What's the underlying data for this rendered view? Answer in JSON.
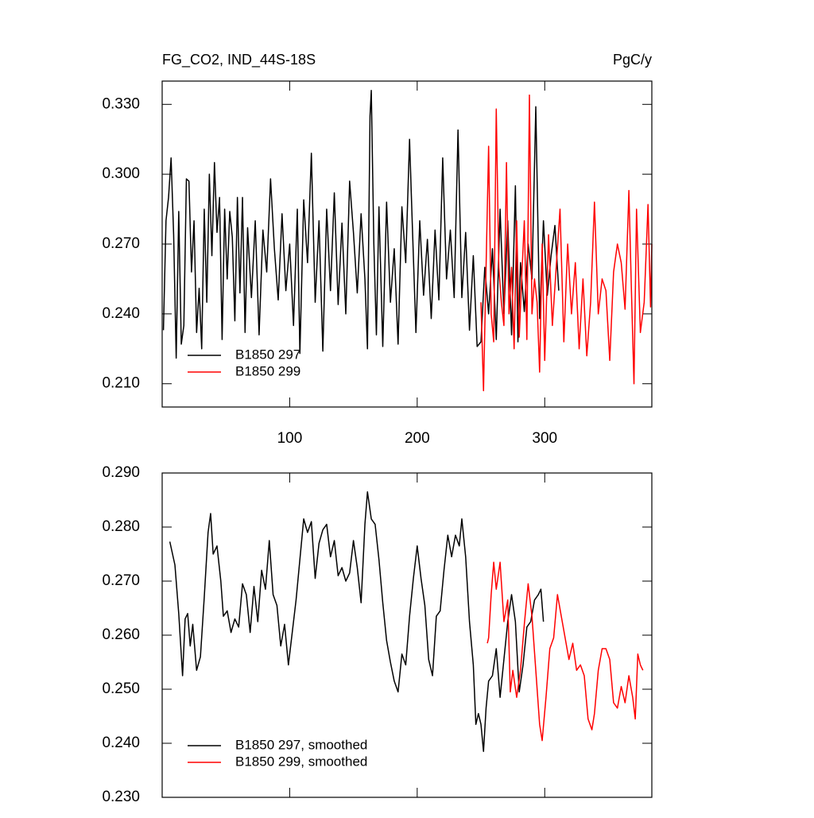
{
  "chart_data": [
    {
      "type": "line",
      "title": "FG_CO2, IND_44S-18S",
      "right_title": "PgC/y",
      "xlim": [
        0,
        384
      ],
      "xticks": [
        100,
        200,
        300
      ],
      "ylim": [
        0.2,
        0.34
      ],
      "yticks": [
        {
          "value": 0.21,
          "label": "0.210"
        },
        {
          "value": 0.24,
          "label": "0.240"
        },
        {
          "value": 0.27,
          "label": "0.270"
        },
        {
          "value": 0.3,
          "label": "0.300"
        },
        {
          "value": 0.33,
          "label": "0.330"
        }
      ],
      "legend": "lower left",
      "series": [
        {
          "name": "B1850 297",
          "color": "#000000",
          "x": [
            1,
            3,
            5,
            7,
            9,
            11,
            13,
            15,
            17,
            19,
            21,
            23,
            25,
            27,
            29,
            31,
            33,
            35,
            37,
            39,
            41,
            43,
            45,
            47,
            49,
            51,
            53,
            55,
            57,
            59,
            61,
            63,
            65,
            67,
            70,
            73,
            76,
            79,
            82,
            85,
            88,
            91,
            94,
            97,
            100,
            103,
            106,
            108,
            111,
            114,
            117,
            120,
            123,
            126,
            129,
            132,
            135,
            138,
            141,
            144,
            147,
            150,
            153,
            156,
            159,
            161,
            163,
            164,
            166,
            168,
            170,
            173,
            176,
            179,
            182,
            185,
            188,
            191,
            194,
            196,
            199,
            202,
            205,
            208,
            211,
            214,
            217,
            220,
            223,
            226,
            229,
            232,
            235,
            238,
            241,
            244,
            247,
            250,
            253,
            256,
            259,
            262,
            265,
            268,
            271,
            274,
            277,
            279,
            281,
            284,
            287,
            290,
            293,
            296,
            299,
            302,
            305,
            308,
            311
          ],
          "values": [
            0.233,
            0.28,
            0.29,
            0.307,
            0.274,
            0.221,
            0.284,
            0.227,
            0.235,
            0.298,
            0.297,
            0.258,
            0.28,
            0.232,
            0.251,
            0.225,
            0.285,
            0.245,
            0.3,
            0.265,
            0.305,
            0.275,
            0.29,
            0.229,
            0.285,
            0.255,
            0.284,
            0.273,
            0.237,
            0.29,
            0.249,
            0.29,
            0.232,
            0.277,
            0.247,
            0.28,
            0.231,
            0.276,
            0.258,
            0.298,
            0.268,
            0.246,
            0.283,
            0.25,
            0.27,
            0.235,
            0.285,
            0.223,
            0.289,
            0.262,
            0.309,
            0.245,
            0.28,
            0.224,
            0.285,
            0.25,
            0.292,
            0.244,
            0.279,
            0.24,
            0.297,
            0.275,
            0.249,
            0.283,
            0.255,
            0.225,
            0.325,
            0.336,
            0.27,
            0.231,
            0.286,
            0.226,
            0.288,
            0.245,
            0.268,
            0.227,
            0.286,
            0.262,
            0.315,
            0.281,
            0.232,
            0.28,
            0.248,
            0.272,
            0.238,
            0.276,
            0.246,
            0.307,
            0.255,
            0.276,
            0.247,
            0.319,
            0.247,
            0.275,
            0.233,
            0.265,
            0.226,
            0.228,
            0.26,
            0.24,
            0.268,
            0.229,
            0.285,
            0.24,
            0.28,
            0.231,
            0.295,
            0.228,
            0.262,
            0.241,
            0.27,
            0.255,
            0.329,
            0.238,
            0.28,
            0.248,
            0.265,
            0.278,
            0.25
          ]
        },
        {
          "name": "B1850 299",
          "color": "#ff0000",
          "x": [
            250,
            252,
            254,
            256,
            258,
            260,
            262,
            264,
            266,
            268,
            270,
            272,
            274,
            276,
            278,
            280,
            282,
            284,
            286,
            288,
            290,
            292,
            294,
            296,
            298,
            300,
            303,
            306,
            309,
            312,
            315,
            318,
            321,
            324,
            327,
            330,
            333,
            336,
            339,
            342,
            345,
            348,
            351,
            354,
            357,
            360,
            363,
            366,
            368,
            370,
            372,
            375,
            378,
            381,
            383,
            384
          ],
          "values": [
            0.245,
            0.207,
            0.26,
            0.312,
            0.24,
            0.228,
            0.328,
            0.26,
            0.245,
            0.235,
            0.305,
            0.24,
            0.26,
            0.225,
            0.28,
            0.23,
            0.256,
            0.28,
            0.229,
            0.334,
            0.24,
            0.255,
            0.245,
            0.215,
            0.27,
            0.22,
            0.274,
            0.235,
            0.26,
            0.285,
            0.228,
            0.27,
            0.24,
            0.262,
            0.225,
            0.255,
            0.222,
            0.245,
            0.288,
            0.24,
            0.255,
            0.25,
            0.22,
            0.258,
            0.27,
            0.262,
            0.242,
            0.293,
            0.25,
            0.21,
            0.285,
            0.232,
            0.245,
            0.287,
            0.243,
            0.27
          ]
        }
      ]
    },
    {
      "type": "line",
      "xlim": [
        0,
        384
      ],
      "xticks": [
        100,
        200,
        300
      ],
      "ylim": [
        0.23,
        0.29
      ],
      "yticks": [
        {
          "value": 0.23,
          "label": "0.230"
        },
        {
          "value": 0.24,
          "label": "0.240"
        },
        {
          "value": 0.25,
          "label": "0.250"
        },
        {
          "value": 0.26,
          "label": "0.260"
        },
        {
          "value": 0.27,
          "label": "0.270"
        },
        {
          "value": 0.28,
          "label": "0.280"
        },
        {
          "value": 0.29,
          "label": "0.290"
        }
      ],
      "legend": "lower left",
      "series": [
        {
          "name": "B1850 297, smoothed",
          "color": "#000000",
          "x": [
            6,
            10,
            13,
            16,
            18,
            20,
            22,
            24,
            27,
            30,
            33,
            36,
            38,
            40,
            43,
            46,
            48,
            51,
            54,
            57,
            60,
            63,
            66,
            69,
            72,
            75,
            78,
            81,
            84,
            87,
            90,
            93,
            96,
            99,
            102,
            105,
            108,
            111,
            114,
            117,
            120,
            123,
            126,
            129,
            132,
            135,
            138,
            141,
            144,
            147,
            150,
            153,
            156,
            159,
            161,
            164,
            167,
            170,
            173,
            176,
            179,
            182,
            185,
            188,
            191,
            194,
            197,
            200,
            203,
            206,
            209,
            212,
            215,
            218,
            221,
            224,
            227,
            230,
            233,
            235,
            238,
            241,
            244,
            246,
            248,
            250,
            252,
            254,
            256,
            259,
            262,
            265,
            268,
            271,
            274,
            277,
            280,
            283,
            286,
            289,
            292,
            295,
            297,
            299
          ],
          "values": [
            0.2773,
            0.273,
            0.264,
            0.2525,
            0.263,
            0.264,
            0.258,
            0.262,
            0.2535,
            0.256,
            0.267,
            0.279,
            0.2825,
            0.275,
            0.2765,
            0.27,
            0.2635,
            0.2645,
            0.2605,
            0.263,
            0.2615,
            0.2695,
            0.2675,
            0.2605,
            0.269,
            0.2625,
            0.272,
            0.2685,
            0.2775,
            0.2675,
            0.2655,
            0.258,
            0.262,
            0.2545,
            0.2605,
            0.2665,
            0.274,
            0.2815,
            0.279,
            0.281,
            0.2705,
            0.277,
            0.2795,
            0.2805,
            0.2745,
            0.2775,
            0.271,
            0.2725,
            0.27,
            0.2715,
            0.2775,
            0.2725,
            0.266,
            0.2805,
            0.2865,
            0.2815,
            0.2805,
            0.274,
            0.266,
            0.259,
            0.255,
            0.2515,
            0.2495,
            0.2565,
            0.2545,
            0.2635,
            0.2705,
            0.2765,
            0.2705,
            0.2655,
            0.2555,
            0.2525,
            0.2635,
            0.2645,
            0.272,
            0.2785,
            0.2745,
            0.2785,
            0.2765,
            0.2815,
            0.2745,
            0.2625,
            0.2545,
            0.2435,
            0.2455,
            0.2435,
            0.2385,
            0.2465,
            0.2515,
            0.2525,
            0.2575,
            0.2485,
            0.2555,
            0.2625,
            0.2675,
            0.2625,
            0.2495,
            0.2545,
            0.2615,
            0.2625,
            0.2665,
            0.2675,
            0.2685,
            0.2625
          ]
        },
        {
          "name": "B1850 299, smoothed",
          "color": "#ff0000",
          "x": [
            255,
            256,
            258,
            260,
            262,
            265,
            268,
            271,
            273,
            275,
            278,
            281,
            284,
            287,
            290,
            293,
            296,
            298,
            301,
            304,
            307,
            310,
            313,
            316,
            319,
            322,
            325,
            328,
            331,
            334,
            337,
            339,
            342,
            345,
            348,
            351,
            354,
            357,
            360,
            363,
            366,
            369,
            371,
            373,
            375,
            377
          ],
          "values": [
            0.2585,
            0.2595,
            0.2675,
            0.2735,
            0.2685,
            0.2735,
            0.2625,
            0.2665,
            0.2495,
            0.2535,
            0.2485,
            0.2535,
            0.262,
            0.2695,
            0.2635,
            0.2535,
            0.2435,
            0.2405,
            0.2485,
            0.2575,
            0.2595,
            0.2675,
            0.2635,
            0.2595,
            0.2555,
            0.2585,
            0.2535,
            0.2545,
            0.2525,
            0.2445,
            0.2425,
            0.2455,
            0.2535,
            0.2575,
            0.2575,
            0.2555,
            0.2475,
            0.2465,
            0.2505,
            0.2475,
            0.2525,
            0.2485,
            0.2445,
            0.2565,
            0.2545,
            0.2535
          ]
        }
      ]
    }
  ]
}
